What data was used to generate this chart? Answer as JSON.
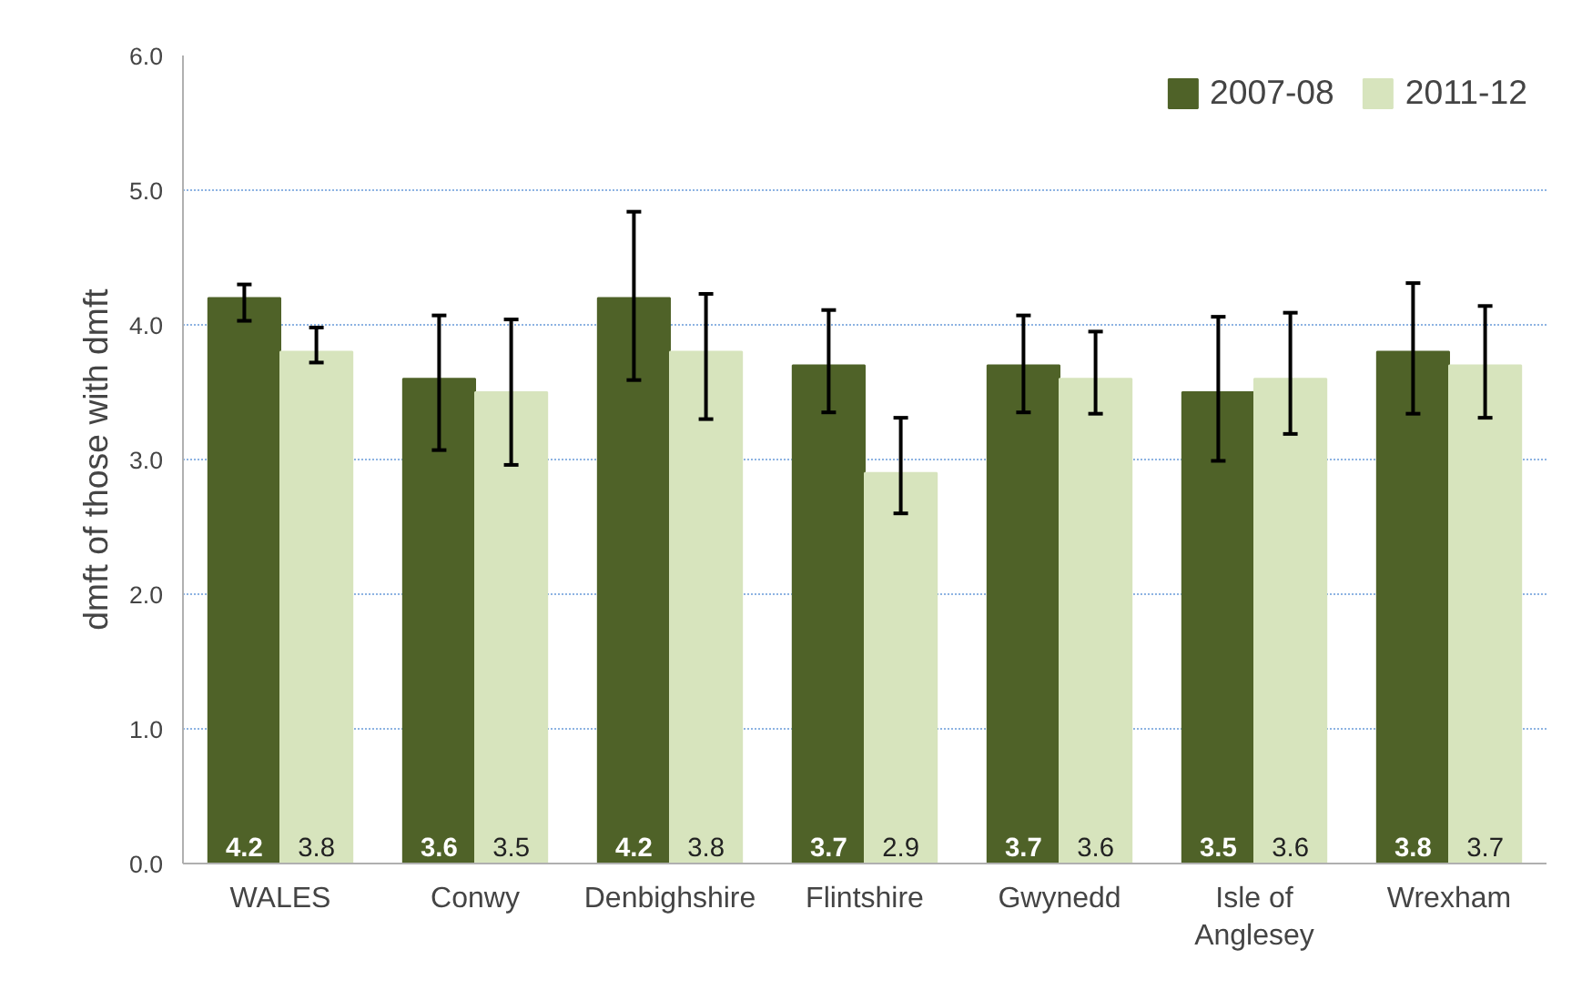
{
  "chart_data": {
    "type": "bar",
    "ylabel": "dmft of those with dmft",
    "categories": [
      "WALES",
      "Conwy",
      "Denbighshire",
      "Flintshire",
      "Gwynedd",
      "Isle of\nAnglesey",
      "Wrexham"
    ],
    "series": [
      {
        "name": "2007-08",
        "color": "#4f6228",
        "values": [
          4.2,
          3.6,
          4.2,
          3.7,
          3.7,
          3.5,
          3.8
        ],
        "errors": [
          [
            4.03,
            4.3
          ],
          [
            3.07,
            4.07
          ],
          [
            3.59,
            4.84
          ],
          [
            3.35,
            4.11
          ],
          [
            3.35,
            4.07
          ],
          [
            2.99,
            4.06
          ],
          [
            3.34,
            4.31
          ]
        ]
      },
      {
        "name": "2011-12",
        "color": "#d7e4bd",
        "values": [
          3.8,
          3.5,
          3.8,
          2.9,
          3.6,
          3.6,
          3.7
        ],
        "errors": [
          [
            3.72,
            3.98
          ],
          [
            2.96,
            4.04
          ],
          [
            3.3,
            4.23
          ],
          [
            2.6,
            3.31
          ],
          [
            3.34,
            3.95
          ],
          [
            3.19,
            4.09
          ],
          [
            3.31,
            4.14
          ]
        ]
      }
    ],
    "ylim": [
      0,
      6
    ],
    "yticks": [
      {
        "value": 0,
        "label": "0.0"
      },
      {
        "value": 1,
        "label": "1.0"
      },
      {
        "value": 2,
        "label": "2.0"
      },
      {
        "value": 3,
        "label": "3.0"
      },
      {
        "value": 4,
        "label": "4.0"
      },
      {
        "value": 5,
        "label": "5.0"
      },
      {
        "value": 6,
        "label": "6.0"
      }
    ],
    "grid": "y",
    "legend": "top right",
    "data_labels": true
  }
}
